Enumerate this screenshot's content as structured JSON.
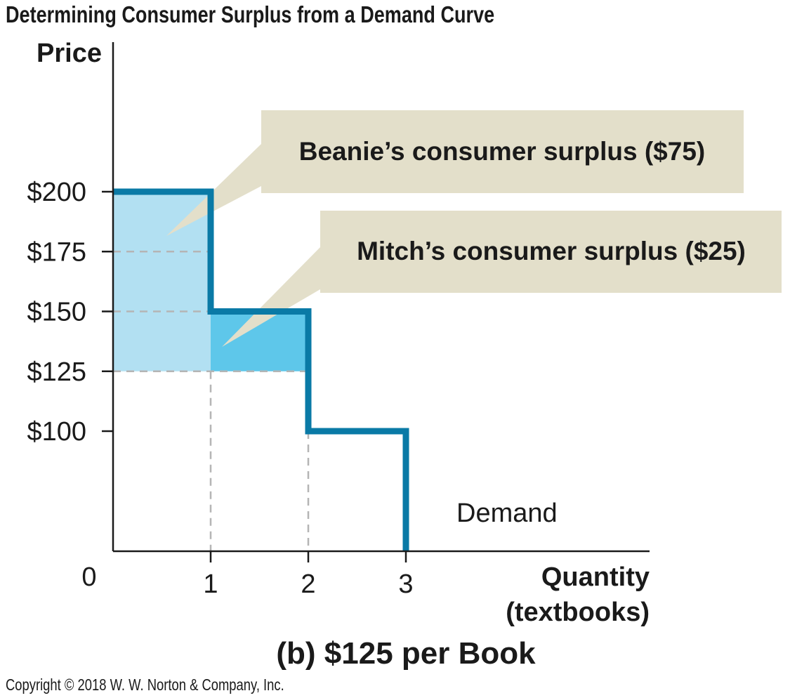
{
  "header": {
    "figure_title": "Determining Consumer Surplus from a Demand Curve"
  },
  "footer": {
    "copyright": "Copyright © 2018 W. W. Norton & Company, Inc."
  },
  "colors": {
    "demand_line": "#0a7aa6",
    "beanie_fill": "#b2e0f2",
    "mitch_fill": "#5ec7ea",
    "callout_fill": "#e3dfca",
    "guide_dash": "#b5b5b5",
    "axis": "#1a1a1a"
  },
  "chart_data": {
    "type": "line",
    "title": "(b) $125 per Book",
    "ylabel": "Price",
    "xlabel_line1": "Quantity",
    "xlabel_line2": "(textbooks)",
    "origin_label": "0",
    "xlim": [
      0,
      4.5
    ],
    "ylim": [
      50,
      225
    ],
    "x_ticks": [
      {
        "value": 1,
        "label": "1"
      },
      {
        "value": 2,
        "label": "2"
      },
      {
        "value": 3,
        "label": "3"
      }
    ],
    "y_ticks": [
      {
        "value": 200,
        "label": "$200"
      },
      {
        "value": 175,
        "label": "$175"
      },
      {
        "value": 150,
        "label": "$150"
      },
      {
        "value": 125,
        "label": "$125"
      },
      {
        "value": 100,
        "label": "$100"
      }
    ],
    "market_price": 125,
    "demand_series": {
      "name": "Demand",
      "steps": [
        {
          "x_from": 0,
          "x_to": 1,
          "price": 200
        },
        {
          "x_from": 1,
          "x_to": 2,
          "price": 150
        },
        {
          "x_from": 2,
          "x_to": 3,
          "price": 100
        }
      ]
    },
    "surplus_areas": [
      {
        "label": "Beanie’s consumer surplus ($75)",
        "x_from": 0,
        "x_to": 1,
        "price_high": 200,
        "price_low": 125
      },
      {
        "label": "Mitch’s consumer surplus ($25)",
        "x_from": 1,
        "x_to": 2,
        "price_high": 150,
        "price_low": 125
      }
    ],
    "guides": {
      "horizontal": [
        {
          "price": 175,
          "x_to": 1
        },
        {
          "price": 150,
          "x_to": 1
        },
        {
          "price": 125,
          "x_to": 2
        }
      ],
      "vertical": [
        {
          "x": 1,
          "price_to": 125
        },
        {
          "x": 2,
          "price_to": 100
        }
      ]
    }
  }
}
